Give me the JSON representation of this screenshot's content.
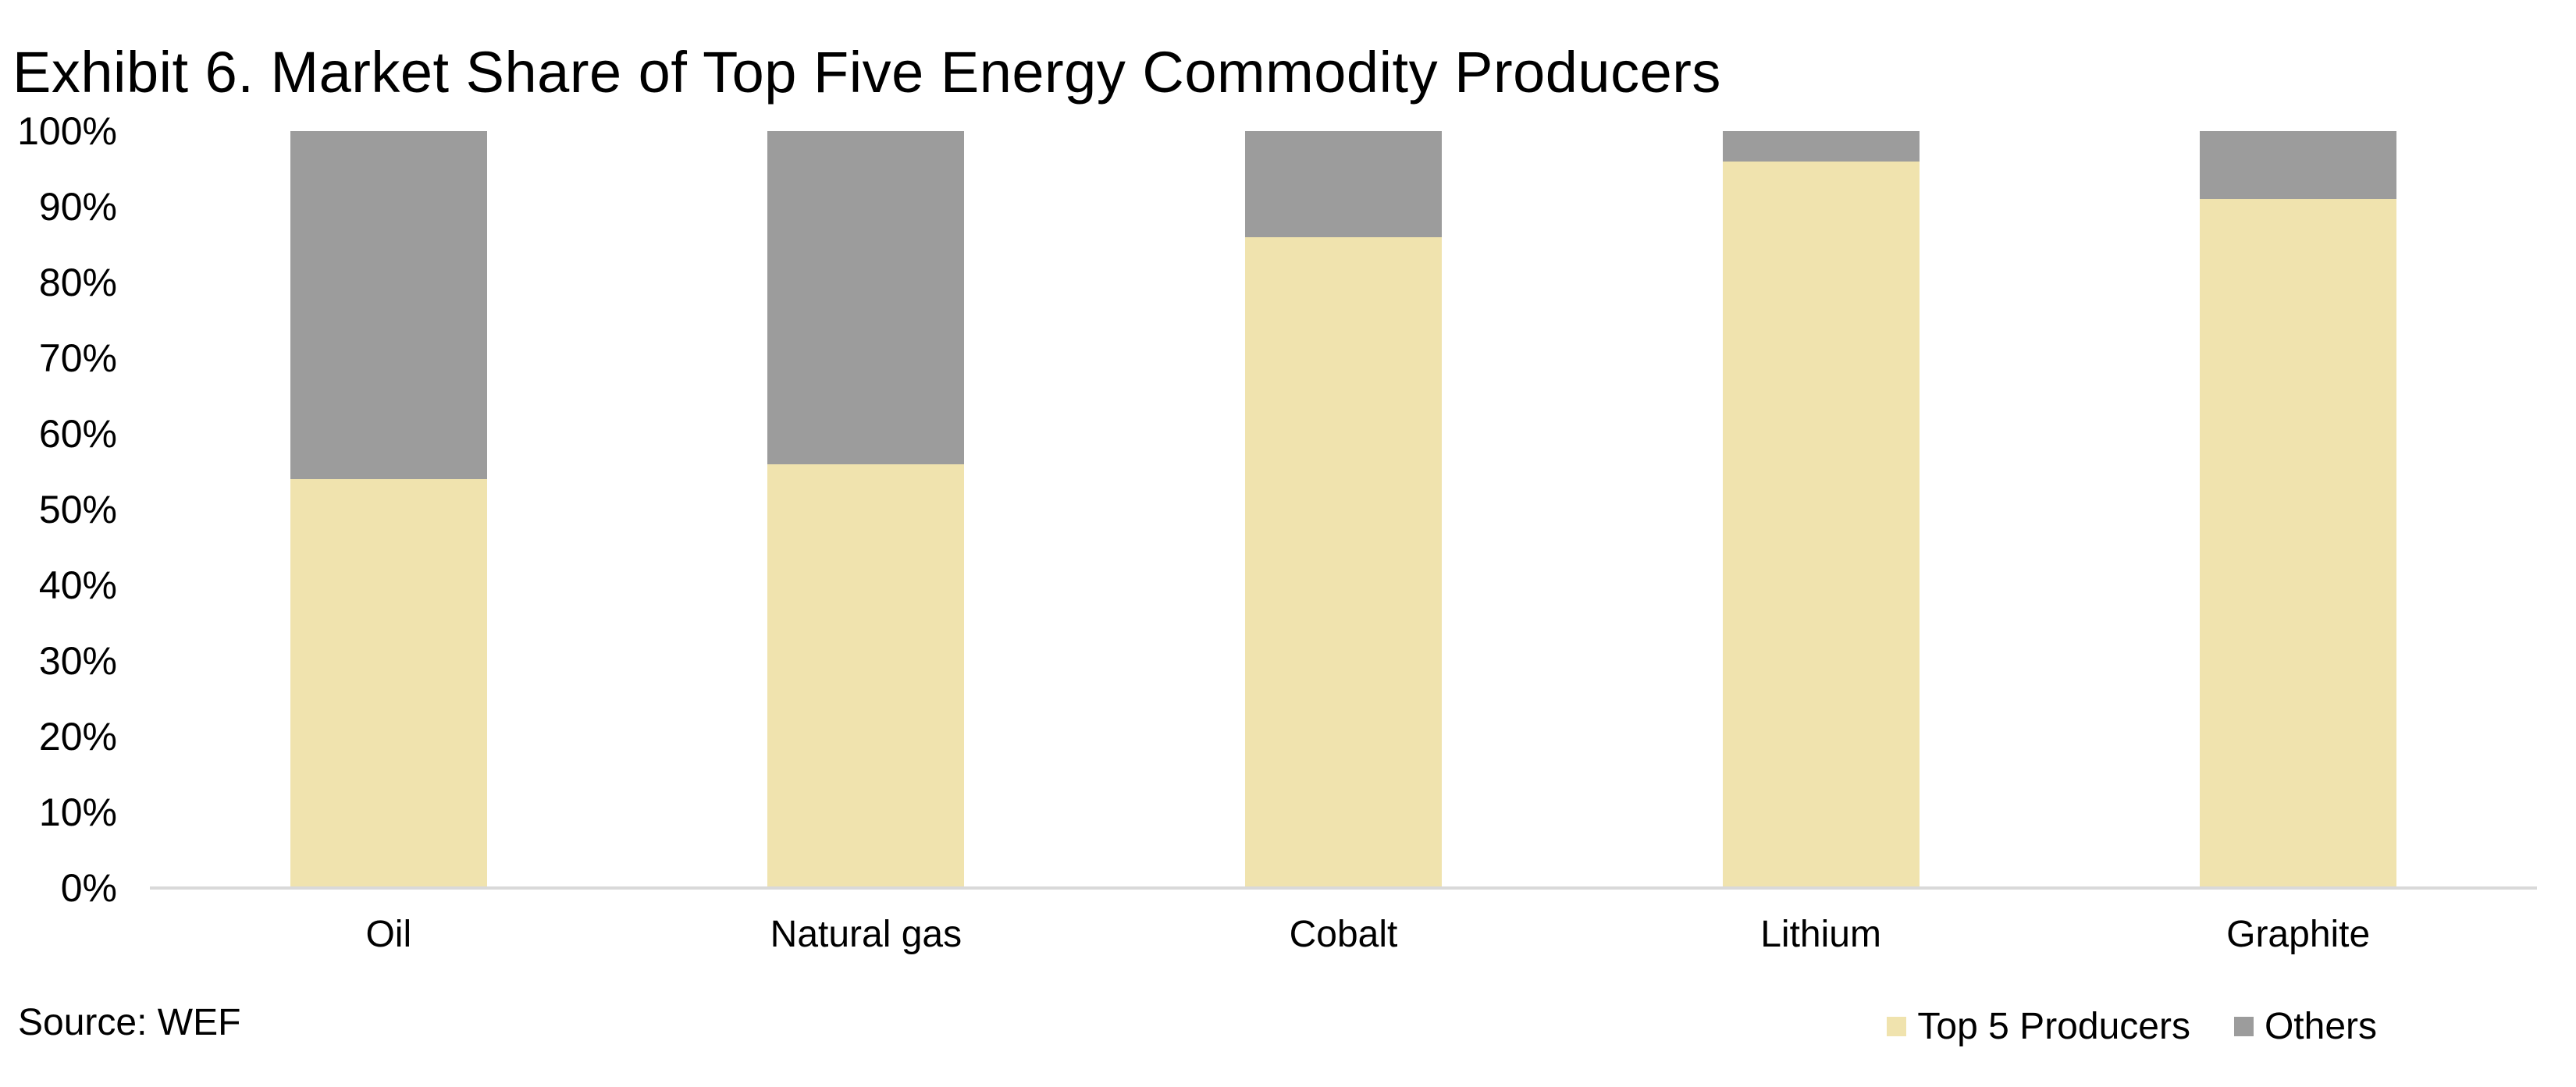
{
  "title": "Exhibit 6. Market Share of Top Five Energy Commodity Producers",
  "source": "Source: WEF",
  "chart_data": {
    "type": "bar",
    "stacked": true,
    "units": "%",
    "title": "Exhibit 6. Market Share of Top Five Energy Commodity Producers",
    "xlabel": "",
    "ylabel": "",
    "ylim": [
      0,
      100
    ],
    "grid": false,
    "legend_position": "bottom-right",
    "axis_line_color": "#D9D9D9",
    "categories": [
      "Oil",
      "Natural gas",
      "Cobalt",
      "Lithium",
      "Graphite"
    ],
    "series": [
      {
        "name": "Top 5 Producers",
        "color": "#F0E3AE",
        "values": [
          54,
          56,
          86,
          96,
          91
        ]
      },
      {
        "name": "Others",
        "color": "#9C9C9C",
        "values": [
          46,
          44,
          14,
          4,
          9
        ]
      }
    ],
    "yticks": [
      "100%",
      "90%",
      "80%",
      "70%",
      "60%",
      "50%",
      "40%",
      "30%",
      "20%",
      "10%",
      "0%"
    ]
  }
}
